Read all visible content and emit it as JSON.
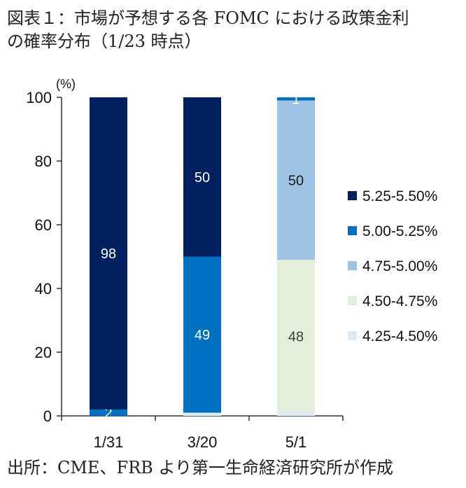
{
  "title_line1": "図表１：市場が予想する各 FOMC における政策金利",
  "title_line2": "の確率分布（1/23 時点）",
  "footer": "出所：CME、FRB より第一生命経済研究所が作成",
  "chart_data": {
    "type": "bar",
    "stacked": true,
    "categories": [
      "1/31",
      "3/20",
      "5/1"
    ],
    "ylabel": "(%)",
    "ylim": [
      0,
      100
    ],
    "yticks": [
      "0",
      "20",
      "40",
      "60",
      "80",
      "100"
    ],
    "series": [
      {
        "name": "4.25-4.50%",
        "color": "#dceaf6",
        "values": [
          0,
          1,
          1
        ],
        "labels": [
          "",
          "",
          ""
        ],
        "label_color": "#ffffff"
      },
      {
        "name": "4.50-4.75%",
        "color": "#e2efda",
        "values": [
          0,
          0,
          48
        ],
        "labels": [
          "",
          "",
          "48"
        ],
        "label_color": "#404040"
      },
      {
        "name": "4.75-5.00%",
        "color": "#9dc3e6",
        "values": [
          0,
          0,
          50
        ],
        "labels": [
          "",
          "",
          "50"
        ],
        "label_color": "#1a1a1a"
      },
      {
        "name": "5.00-5.25%",
        "color": "#0070c0",
        "values": [
          2,
          49,
          1
        ],
        "labels": [
          "2",
          "49",
          "1"
        ],
        "label_color": "#ffffff"
      },
      {
        "name": "5.25-5.50%",
        "color": "#002060",
        "values": [
          98,
          50,
          0
        ],
        "labels": [
          "98",
          "50",
          ""
        ],
        "label_color": "#ffffff"
      }
    ],
    "legend_order": [
      "5.25-5.50%",
      "5.00-5.25%",
      "4.75-5.00%",
      "4.50-4.75%",
      "4.25-4.50%"
    ]
  }
}
